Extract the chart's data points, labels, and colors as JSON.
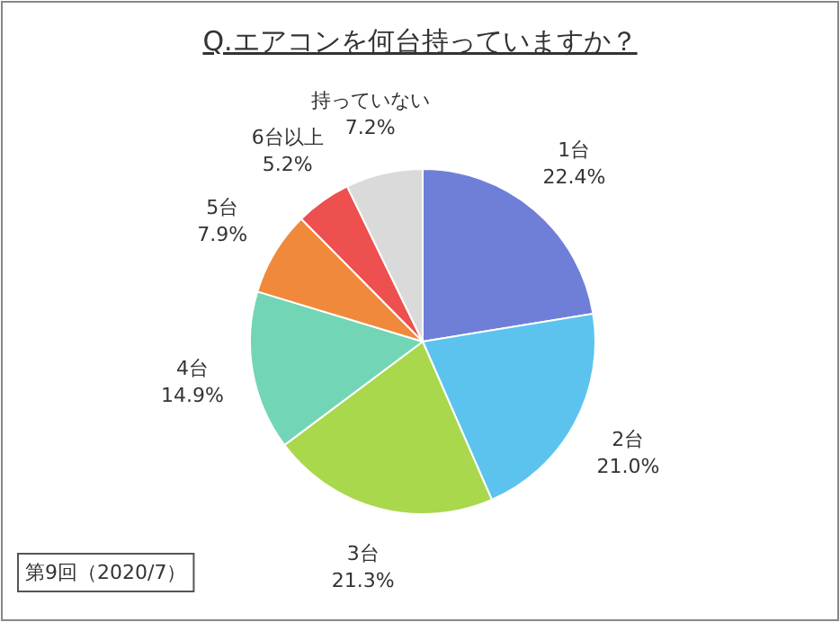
{
  "chart_data": {
    "type": "pie",
    "title": "Q.エアコンを何台持っていますか？",
    "categories": [
      "1台",
      "2台",
      "3台",
      "4台",
      "5台",
      "6台以上",
      "持っていない"
    ],
    "values": [
      22.4,
      21.0,
      21.3,
      14.9,
      7.9,
      5.2,
      7.2
    ],
    "colors": [
      "#6f7fd8",
      "#5cc3ee",
      "#a9d84c",
      "#72d6b6",
      "#f0893c",
      "#ee4f4f",
      "#dadada"
    ],
    "value_labels": [
      "22.4%",
      "21.0%",
      "21.3%",
      "14.9%",
      "7.9%",
      "5.2%",
      "7.2%"
    ],
    "annotations": [
      "第9回（2020/7）"
    ]
  }
}
